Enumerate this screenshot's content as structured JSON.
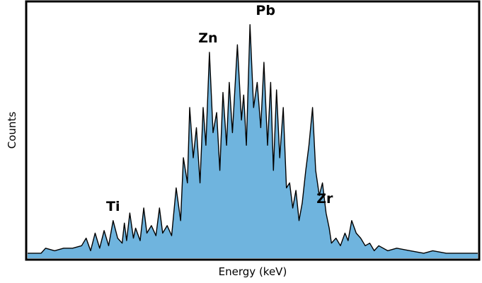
{
  "chart_data": {
    "type": "area",
    "title": "",
    "xlabel": "Energy (keV)",
    "ylabel": "Counts",
    "xlim": [
      0,
      100
    ],
    "ylim": [
      0,
      100
    ],
    "x_ticks_visible": false,
    "y_ticks_visible": false,
    "grid": false,
    "fill_color": "#6fb4de",
    "line_color": "#000000",
    "spectrum_points": [
      [
        0,
        2
      ],
      [
        3,
        2
      ],
      [
        4,
        4
      ],
      [
        6,
        3
      ],
      [
        8,
        4
      ],
      [
        10,
        4
      ],
      [
        12,
        5
      ],
      [
        13,
        8
      ],
      [
        14,
        3
      ],
      [
        15,
        10
      ],
      [
        16,
        4
      ],
      [
        17,
        11
      ],
      [
        18,
        5
      ],
      [
        19,
        15
      ],
      [
        20,
        8
      ],
      [
        21,
        6
      ],
      [
        21.5,
        14
      ],
      [
        22,
        7
      ],
      [
        22.7,
        18
      ],
      [
        23.5,
        8
      ],
      [
        24,
        12
      ],
      [
        25,
        7
      ],
      [
        25.8,
        20
      ],
      [
        26.5,
        10
      ],
      [
        27.5,
        13
      ],
      [
        28.5,
        9
      ],
      [
        29.3,
        20
      ],
      [
        30,
        10
      ],
      [
        31,
        13
      ],
      [
        32,
        9
      ],
      [
        33,
        28
      ],
      [
        34,
        15
      ],
      [
        34.6,
        40
      ],
      [
        35.5,
        30
      ],
      [
        36,
        60
      ],
      [
        36.8,
        40
      ],
      [
        37.5,
        52
      ],
      [
        38.3,
        30
      ],
      [
        39,
        60
      ],
      [
        39.6,
        45
      ],
      [
        40.4,
        82
      ],
      [
        41.2,
        50
      ],
      [
        42,
        58
      ],
      [
        42.7,
        35
      ],
      [
        43.4,
        66
      ],
      [
        44.2,
        45
      ],
      [
        44.8,
        70
      ],
      [
        45.5,
        50
      ],
      [
        46.6,
        85
      ],
      [
        47.5,
        55
      ],
      [
        48,
        65
      ],
      [
        48.6,
        45
      ],
      [
        49.4,
        93
      ],
      [
        50.2,
        60
      ],
      [
        51,
        70
      ],
      [
        51.8,
        52
      ],
      [
        52.5,
        78
      ],
      [
        53.3,
        45
      ],
      [
        54,
        70
      ],
      [
        54.6,
        35
      ],
      [
        55.3,
        67
      ],
      [
        56,
        40
      ],
      [
        56.8,
        60
      ],
      [
        57.5,
        28
      ],
      [
        58.2,
        30
      ],
      [
        58.9,
        20
      ],
      [
        59.6,
        27
      ],
      [
        60.3,
        15
      ],
      [
        61,
        22
      ],
      [
        61.8,
        35
      ],
      [
        62.5,
        45
      ],
      [
        63.3,
        60
      ],
      [
        64,
        35
      ],
      [
        64.8,
        25
      ],
      [
        65.5,
        30
      ],
      [
        66.3,
        18
      ],
      [
        67,
        12
      ],
      [
        67.5,
        6
      ],
      [
        68.5,
        8
      ],
      [
        69.5,
        5
      ],
      [
        70.5,
        10
      ],
      [
        71.2,
        7
      ],
      [
        72,
        15
      ],
      [
        73,
        10
      ],
      [
        74,
        8
      ],
      [
        75,
        5
      ],
      [
        76,
        6
      ],
      [
        77,
        3
      ],
      [
        78,
        5
      ],
      [
        80,
        3
      ],
      [
        82,
        4
      ],
      [
        85,
        3
      ],
      [
        88,
        2
      ],
      [
        90,
        3
      ],
      [
        93,
        2
      ],
      [
        96,
        2
      ],
      [
        100,
        2
      ]
    ],
    "annotations": [
      {
        "text": "Ti",
        "x": 19,
        "y": 15
      },
      {
        "text": "Zn",
        "x": 40.4,
        "y": 82
      },
      {
        "text": "Pb",
        "x": 49.4,
        "y": 93
      },
      {
        "text": "Zr",
        "x": 66.0,
        "y": 18
      }
    ]
  }
}
